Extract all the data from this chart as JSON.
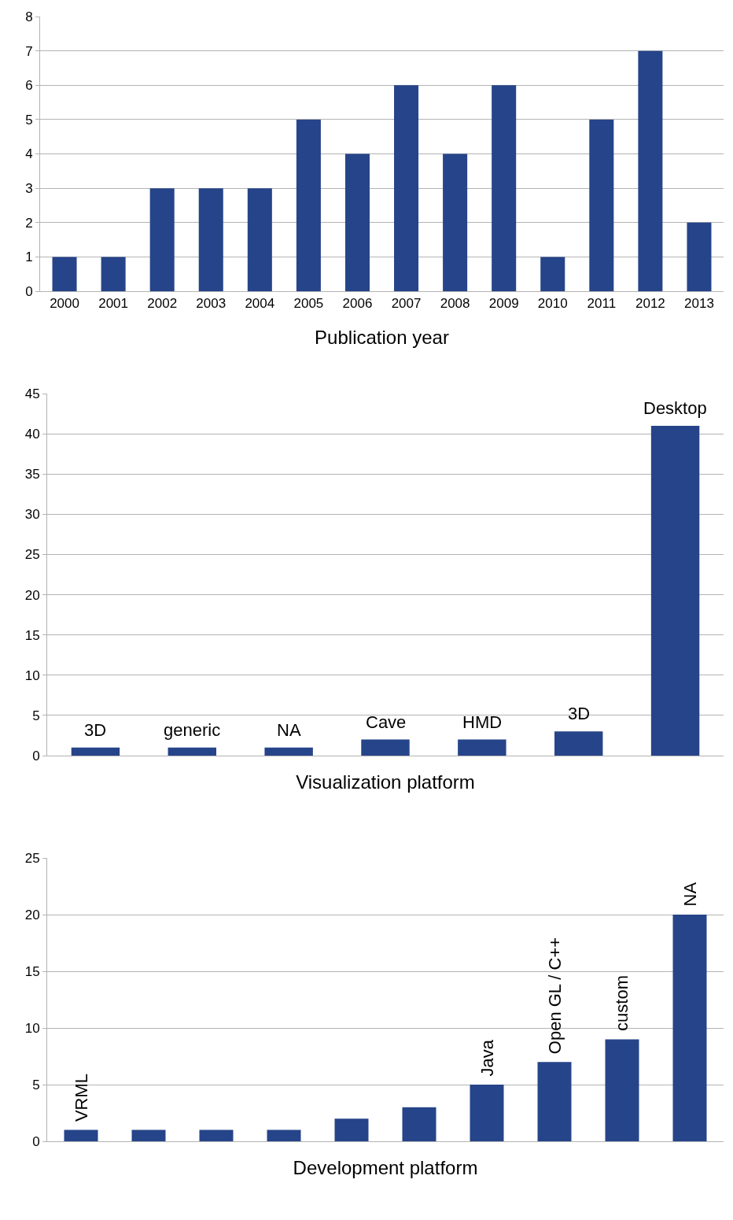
{
  "chart_data": [
    {
      "type": "bar",
      "xlabel": "Publication year",
      "categories": [
        "2000",
        "2001",
        "2002",
        "2003",
        "2004",
        "2005",
        "2006",
        "2007",
        "2008",
        "2009",
        "2010",
        "2011",
        "2012",
        "2013"
      ],
      "values": [
        1,
        1,
        3,
        3,
        3,
        5,
        4,
        6,
        4,
        6,
        1,
        5,
        7,
        2
      ],
      "color": "#264489",
      "ylim": [
        0,
        8
      ],
      "yticks": [
        0,
        1,
        2,
        3,
        4,
        5,
        6,
        7,
        8
      ],
      "grid": "y",
      "legend": false
    },
    {
      "type": "bar",
      "xlabel": "Visualization platform",
      "categories": [
        "3D",
        "generic",
        "NA",
        "Cave",
        "HMD",
        "3D",
        "Desktop"
      ],
      "values": [
        1,
        1,
        1,
        2,
        2,
        3,
        41
      ],
      "color": "#264489",
      "ylim": [
        0,
        45
      ],
      "yticks": [
        0,
        5,
        10,
        15,
        20,
        25,
        30,
        35,
        40,
        45
      ],
      "grid": "y",
      "legend": false,
      "tick_labels": "y"
    },
    {
      "type": "bar",
      "xlabel": "Development platform",
      "categories": [
        "VRML",
        null,
        null,
        null,
        null,
        null,
        "Java",
        "Open GL / C++",
        "custom",
        "NA"
      ],
      "values": [
        1,
        1,
        1,
        1,
        2,
        3,
        5,
        7,
        9,
        20
      ],
      "color": "#264489",
      "ylim": [
        0,
        25
      ],
      "yticks": [
        0,
        5,
        10,
        15,
        20,
        25
      ],
      "grid": "y",
      "legend": false,
      "tick_labels": "y"
    }
  ]
}
